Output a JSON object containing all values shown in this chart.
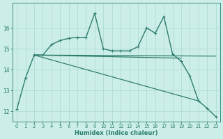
{
  "xlabel": "Humidex (Indice chaleur)",
  "bg_color": "#cceee8",
  "grid_color": "#aad8d0",
  "line_color": "#2e7d6e",
  "xlim": [
    -0.5,
    23.5
  ],
  "ylim": [
    11.5,
    17.2
  ],
  "yticks": [
    12,
    13,
    14,
    15,
    16
  ],
  "xticks": [
    0,
    1,
    2,
    3,
    4,
    5,
    6,
    7,
    8,
    9,
    10,
    11,
    12,
    13,
    14,
    15,
    16,
    17,
    18,
    19,
    20,
    21,
    22,
    23
  ],
  "lines": [
    {
      "x": [
        0,
        1,
        2,
        3,
        4,
        5,
        6,
        7,
        8,
        9,
        10,
        11,
        12,
        13,
        14,
        15,
        16,
        17,
        18,
        19,
        20,
        21,
        22,
        23
      ],
      "y": [
        12.1,
        13.6,
        14.7,
        14.7,
        15.2,
        15.4,
        15.5,
        15.55,
        15.55,
        16.7,
        15.0,
        14.9,
        14.9,
        14.9,
        15.1,
        16.0,
        15.75,
        16.55,
        14.75,
        14.4,
        13.7,
        12.5,
        12.15,
        11.75
      ],
      "marker": "+",
      "markersize": 3.5,
      "linewidth": 1.0
    },
    {
      "x": [
        2,
        19
      ],
      "y": [
        14.7,
        14.55
      ],
      "marker": null,
      "linewidth": 0.9
    },
    {
      "x": [
        2,
        23
      ],
      "y": [
        14.7,
        14.65
      ],
      "marker": null,
      "linewidth": 0.9
    },
    {
      "x": [
        2,
        21
      ],
      "y": [
        14.7,
        12.5
      ],
      "marker": null,
      "linewidth": 0.9
    }
  ]
}
